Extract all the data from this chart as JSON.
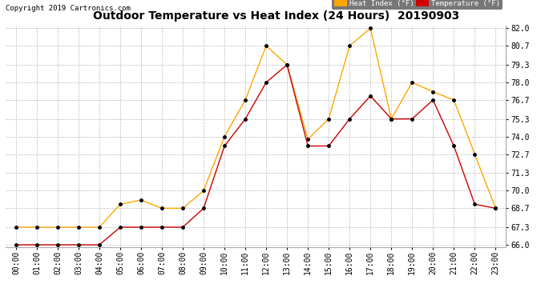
{
  "title": "Outdoor Temperature vs Heat Index (24 Hours)  20190903",
  "copyright": "Copyright 2019 Cartronics.com",
  "legend_heat": "Heat Index (°F)",
  "legend_temp": "Temperature (°F)",
  "hours": [
    "00:00",
    "01:00",
    "02:00",
    "03:00",
    "04:00",
    "05:00",
    "06:00",
    "07:00",
    "08:00",
    "09:00",
    "10:00",
    "11:00",
    "12:00",
    "13:00",
    "14:00",
    "15:00",
    "16:00",
    "17:00",
    "18:00",
    "19:00",
    "20:00",
    "21:00",
    "22:00",
    "23:00"
  ],
  "heat_index": [
    67.3,
    67.3,
    67.3,
    67.3,
    67.3,
    69.0,
    69.3,
    68.7,
    68.7,
    70.0,
    74.0,
    76.7,
    80.7,
    79.3,
    73.8,
    75.3,
    80.7,
    82.0,
    75.3,
    78.0,
    77.3,
    76.7,
    72.7,
    68.7
  ],
  "temperature": [
    66.0,
    66.0,
    66.0,
    66.0,
    66.0,
    67.3,
    67.3,
    67.3,
    67.3,
    68.7,
    73.3,
    75.3,
    78.0,
    79.3,
    73.3,
    73.3,
    75.3,
    77.0,
    75.3,
    75.3,
    76.7,
    73.3,
    69.0,
    68.7
  ],
  "ylim_min": 66.0,
  "ylim_max": 82.0,
  "yticks": [
    66.0,
    67.3,
    68.7,
    70.0,
    71.3,
    72.7,
    74.0,
    75.3,
    76.7,
    78.0,
    79.3,
    80.7,
    82.0
  ],
  "heat_color": "#FFA500",
  "temp_color": "#CC0000",
  "marker_color": "black",
  "bg_color": "#FFFFFF",
  "grid_color": "#BBBBBB",
  "title_fontsize": 10,
  "copyright_fontsize": 6.5,
  "legend_fontsize": 6.5,
  "tick_fontsize": 7,
  "legend_bg_heat": "#FFA500",
  "legend_bg_temp": "#CC0000",
  "legend_frame_color": "#555555"
}
